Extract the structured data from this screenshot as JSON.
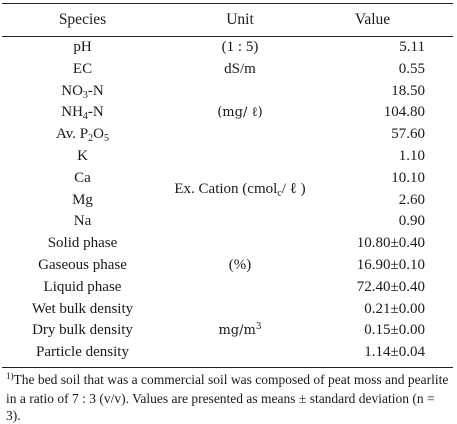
{
  "header": {
    "species": "Species",
    "unit": "Unit",
    "value": "Value"
  },
  "rows": [
    {
      "species": "pH",
      "value": "5.11"
    },
    {
      "species": "EC",
      "value": "0.55"
    },
    {
      "species_main": "NO",
      "species_sub": "3",
      "species_tail": "-N",
      "value": "18.50"
    },
    {
      "species_main": "NH",
      "species_sub": "4",
      "species_tail": "-N",
      "value": "104.80"
    },
    {
      "species_main": "Av. P",
      "species_sub": "2",
      "species_mid": "O",
      "species_sub2": "5",
      "value": "57.60"
    },
    {
      "species": "K",
      "value": "1.10"
    },
    {
      "species": "Ca",
      "value": "10.10"
    },
    {
      "species": "Mg",
      "value": "2.60"
    },
    {
      "species": "Na",
      "value": "0.90"
    },
    {
      "species": "Solid phase",
      "value": "10.80±0.40"
    },
    {
      "species": "Gaseous phase",
      "value": "16.90±0.10"
    },
    {
      "species": "Liquid phase",
      "value": "72.40±0.40"
    },
    {
      "species": "Wet bulk density",
      "value": "0.21±0.00"
    },
    {
      "species": "Dry bulk density",
      "value": "0.15±0.00"
    },
    {
      "species": "Particle density",
      "value": "1.14±0.04"
    }
  ],
  "units": {
    "ph": "(1 : 5)",
    "ec": "dS/m",
    "nitrogen": "(mg/ ℓ)",
    "cation_main": "Ex. Cation (cmol",
    "cation_sub": "c",
    "cation_tail": "/ ℓ )",
    "phase": "(%)",
    "density_main": "mg/m",
    "density_sup": "3"
  },
  "footnote": {
    "marker": "1)",
    "text": "The bed soil that was a commercial soil was composed of peat moss and pearlite in a ratio of 7 : 3 (v/v). Values are presented as means ± standard deviation (n = 3)."
  }
}
